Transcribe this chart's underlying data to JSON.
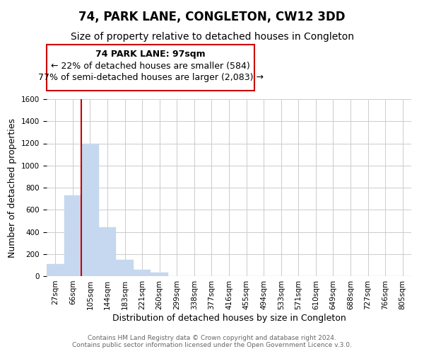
{
  "title": "74, PARK LANE, CONGLETON, CW12 3DD",
  "subtitle": "Size of property relative to detached houses in Congleton",
  "xlabel": "Distribution of detached houses by size in Congleton",
  "ylabel": "Number of detached properties",
  "bin_labels": [
    "27sqm",
    "66sqm",
    "105sqm",
    "144sqm",
    "183sqm",
    "221sqm",
    "260sqm",
    "299sqm",
    "338sqm",
    "377sqm",
    "416sqm",
    "455sqm",
    "494sqm",
    "533sqm",
    "571sqm",
    "610sqm",
    "649sqm",
    "688sqm",
    "727sqm",
    "766sqm",
    "805sqm"
  ],
  "bar_heights": [
    110,
    730,
    1200,
    440,
    145,
    60,
    35,
    0,
    0,
    0,
    0,
    0,
    0,
    0,
    0,
    0,
    0,
    0,
    0,
    0,
    0
  ],
  "bar_color": "#c5d8ef",
  "bar_edge_color": "#c5d8ef",
  "marker_line_color": "#cc0000",
  "ylim": [
    0,
    1600
  ],
  "yticks": [
    0,
    200,
    400,
    600,
    800,
    1000,
    1200,
    1400,
    1600
  ],
  "annotation_text_line1": "74 PARK LANE: 97sqm",
  "annotation_text_line2": "← 22% of detached houses are smaller (584)",
  "annotation_text_line3": "77% of semi-detached houses are larger (2,083) →",
  "footer_line1": "Contains HM Land Registry data © Crown copyright and database right 2024.",
  "footer_line2": "Contains public sector information licensed under the Open Government Licence v.3.0.",
  "background_color": "#ffffff",
  "grid_color": "#cccccc",
  "title_fontsize": 12,
  "subtitle_fontsize": 10,
  "axis_label_fontsize": 9,
  "tick_fontsize": 7.5,
  "annotation_fontsize": 9,
  "footer_fontsize": 6.5
}
